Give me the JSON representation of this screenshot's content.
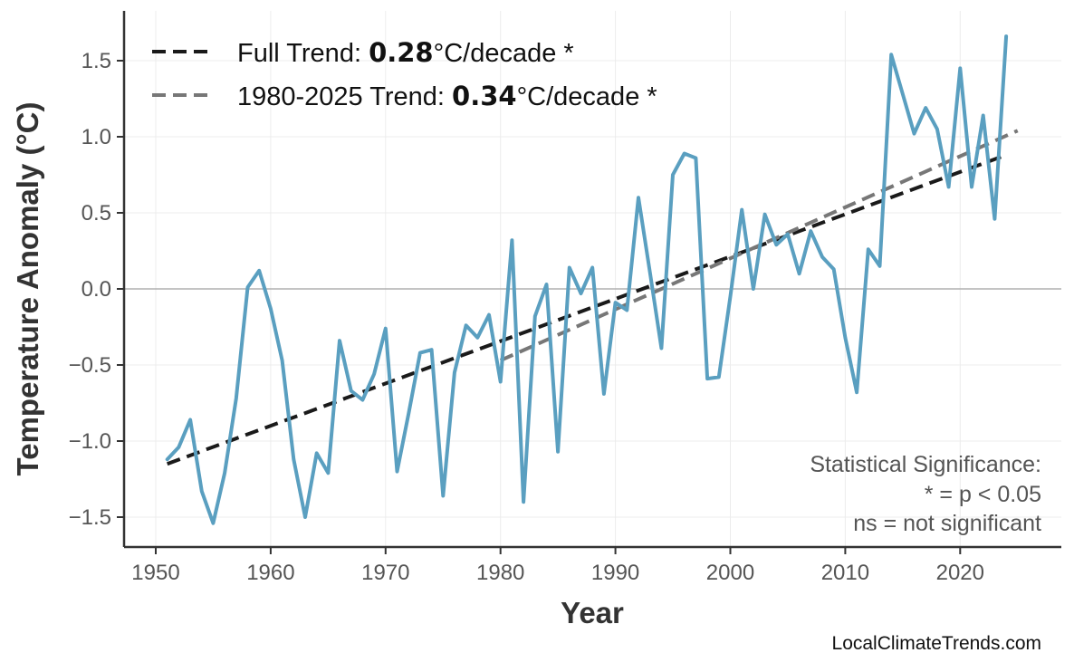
{
  "chart_data": {
    "type": "line",
    "title": "",
    "xlabel": "Year",
    "ylabel": "Temperature Anomaly (°C)",
    "xlim": [
      1947.3,
      2028.8
    ],
    "ylim": [
      -1.71,
      1.8
    ],
    "grid": true,
    "x_ticks": [
      "1950",
      "1960",
      "1970",
      "1980",
      "1990",
      "2000",
      "2010",
      "2020"
    ],
    "y_ticks": [
      "1.5",
      "1.0",
      "0.5",
      "0.0",
      "−0.5",
      "−1.0",
      "−1.5"
    ],
    "y_tick_values": [
      1.5,
      1.0,
      0.5,
      0.0,
      -0.5,
      -1.0,
      -1.5
    ],
    "x_tick_values": [
      1950,
      1960,
      1970,
      1980,
      1990,
      2000,
      2010,
      2020
    ],
    "series_color": "#5a9fc0",
    "x": [
      1951,
      1952,
      1953,
      1954,
      1955,
      1956,
      1957,
      1958,
      1959,
      1960,
      1961,
      1962,
      1963,
      1964,
      1965,
      1966,
      1967,
      1968,
      1969,
      1970,
      1971,
      1972,
      1973,
      1974,
      1975,
      1976,
      1977,
      1978,
      1979,
      1980,
      1981,
      1982,
      1983,
      1984,
      1985,
      1986,
      1987,
      1988,
      1989,
      1990,
      1991,
      1992,
      1993,
      1994,
      1995,
      1996,
      1997,
      1998,
      1999,
      2000,
      2001,
      2002,
      2003,
      2004,
      2005,
      2006,
      2007,
      2008,
      2009,
      2010,
      2011,
      2012,
      2013,
      2014,
      2015,
      2016,
      2017,
      2018,
      2019,
      2020,
      2021,
      2022,
      2023,
      2024
    ],
    "y": [
      -1.12,
      -1.04,
      -0.86,
      -1.33,
      -1.54,
      -1.21,
      -0.72,
      0.01,
      0.12,
      -0.13,
      -0.47,
      -1.12,
      -1.5,
      -1.08,
      -1.21,
      -0.34,
      -0.67,
      -0.73,
      -0.56,
      -0.26,
      -1.2,
      -0.82,
      -0.42,
      -0.4,
      -1.36,
      -0.55,
      -0.24,
      -0.32,
      -0.17,
      -0.61,
      0.32,
      -1.4,
      -0.18,
      0.03,
      -1.07,
      0.14,
      -0.03,
      0.14,
      -0.69,
      -0.09,
      -0.14,
      0.6,
      0.11,
      -0.39,
      0.75,
      0.89,
      0.86,
      -0.59,
      -0.58,
      -0.05,
      0.52,
      0.0,
      0.49,
      0.29,
      0.36,
      0.1,
      0.38,
      0.21,
      0.13,
      -0.32,
      -0.68,
      0.26,
      0.15,
      1.54,
      1.28,
      1.02,
      1.19,
      1.05,
      0.67,
      1.45,
      0.67,
      1.14,
      0.46,
      1.66
    ],
    "trends": [
      {
        "label_prefix": "Full Trend: ",
        "value": "0.28",
        "label_suffix": "°C/decade *",
        "x": [
          1951,
          2024
        ],
        "y": [
          -1.15,
          0.88
        ],
        "color": "#1a1a1a"
      },
      {
        "label_prefix": "1980-2025 Trend: ",
        "value": "0.34",
        "label_suffix": "°C/decade *",
        "x": [
          1980,
          2025
        ],
        "y": [
          -0.47,
          1.04
        ],
        "color": "#777777"
      }
    ],
    "legend_position": "top-left",
    "annotation": [
      "Statistical Significance:",
      "* = p < 0.05",
      "ns = not significant"
    ],
    "credit": "LocalClimateTrends.com"
  }
}
